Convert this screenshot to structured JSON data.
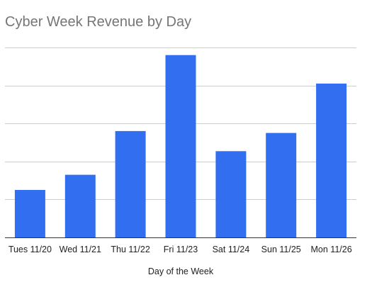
{
  "chart_data": {
    "type": "bar",
    "title": "Cyber Week Revenue by Day",
    "xlabel": "Day of the Week",
    "ylabel": "",
    "categories": [
      "Tues 11/20",
      "Wed 11/21",
      "Thu 11/22",
      "Fri 11/23",
      "Sat 11/24",
      "Sun 11/25",
      "Mon 11/26"
    ],
    "values": [
      1.25,
      1.65,
      2.8,
      4.8,
      2.27,
      2.75,
      4.05
    ],
    "ylim": [
      0,
      5
    ],
    "y_tick_labels_shown": false,
    "grid": true,
    "legend": "none",
    "bar_color": "#326ff0",
    "gridline_color": "#cccccc",
    "axis_color": "#333333"
  }
}
